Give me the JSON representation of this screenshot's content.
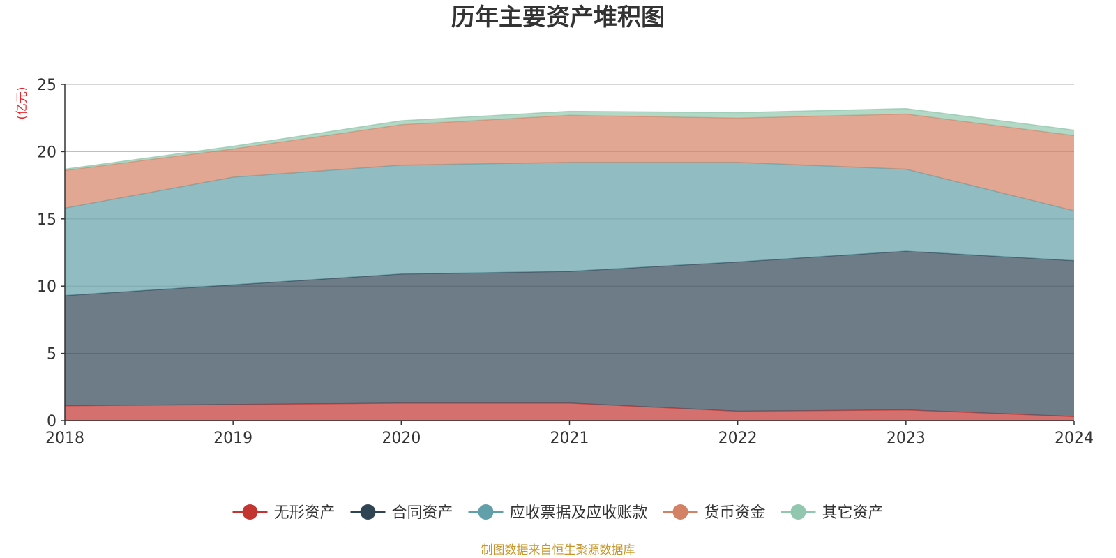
{
  "chart_data": {
    "type": "area",
    "title": "历年主要资产堆积图",
    "ylabel": "亿元",
    "xlabel": "",
    "x": [
      "2018",
      "2019",
      "2020",
      "2021",
      "2022",
      "2023",
      "2024"
    ],
    "ylim": [
      0,
      25
    ],
    "yticks": [
      "0",
      "5",
      "10",
      "15",
      "20",
      "25"
    ],
    "stacked": true,
    "grid": true,
    "legend_position": "bottom",
    "series": [
      {
        "name": "无形资产",
        "color": "#c23531",
        "values": [
          1.1,
          1.2,
          1.3,
          1.3,
          0.7,
          0.8,
          0.3
        ]
      },
      {
        "name": "合同资产",
        "color": "#2f4554",
        "values": [
          8.2,
          8.9,
          9.6,
          9.8,
          11.1,
          11.8,
          11.6
        ]
      },
      {
        "name": "应收票据及应收账款",
        "color": "#61a0a8",
        "values": [
          6.5,
          8.0,
          8.1,
          8.1,
          7.4,
          6.1,
          3.7
        ]
      },
      {
        "name": "货币资金",
        "color": "#d48265",
        "values": [
          2.8,
          2.1,
          3.0,
          3.5,
          3.3,
          4.1,
          5.6
        ]
      },
      {
        "name": "其它资产",
        "color": "#91c7ae",
        "values": [
          0.1,
          0.2,
          0.3,
          0.3,
          0.4,
          0.4,
          0.4
        ]
      }
    ]
  },
  "source_note": "制图数据来自恒生聚源数据库"
}
